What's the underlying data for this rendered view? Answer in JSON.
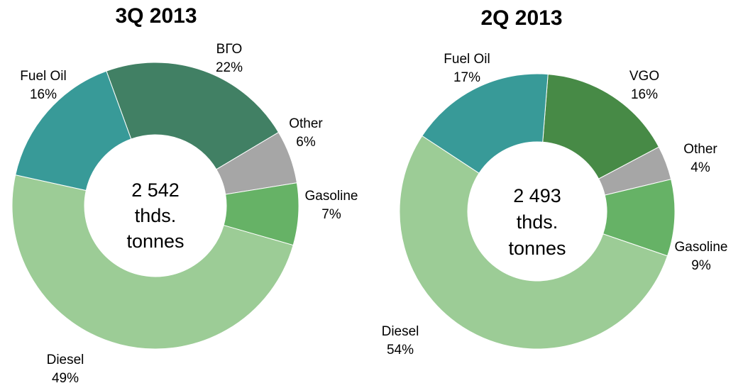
{
  "chart_data": [
    {
      "type": "donut",
      "title": "3Q 2013",
      "center_text": [
        "2 542",
        "thds.",
        "tonnes"
      ],
      "categories": [
        "ВГО",
        "Other",
        "Gasoline",
        "Diesel",
        "Fuel Oil"
      ],
      "values": [
        22,
        6,
        7,
        49,
        16
      ],
      "value_labels": [
        "22%",
        "6%",
        "7%",
        "49%",
        "16%"
      ],
      "colors": [
        "#418064",
        "#a6a6a6",
        "#66b266",
        "#9ccc96",
        "#389a98"
      ]
    },
    {
      "type": "donut",
      "title": "2Q 2013",
      "center_text": [
        "2 493",
        "thds.",
        "tonnes"
      ],
      "categories": [
        "VGO",
        "Other",
        "Gasoline",
        "Diesel",
        "Fuel Oil"
      ],
      "values": [
        16,
        4,
        9,
        54,
        17
      ],
      "value_labels": [
        "16%",
        "4%",
        "9%",
        "54%",
        "17%"
      ],
      "colors": [
        "#478a46",
        "#a6a6a6",
        "#66b266",
        "#9ccc96",
        "#389a98"
      ]
    }
  ]
}
